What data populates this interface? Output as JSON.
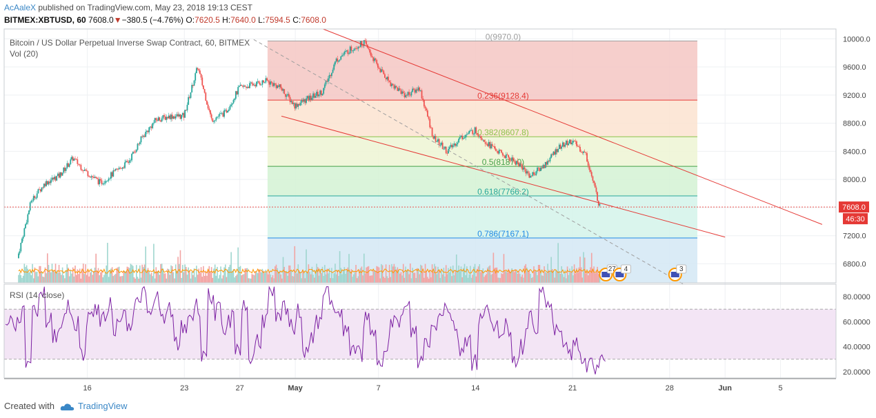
{
  "header": {
    "author": "AcAaleX",
    "published_text": "published on TradingView.com, May 23, 2018 19:13 CEST",
    "symbol": "BITMEX:XBTUSD, 60",
    "last": "7608.0",
    "change": "−380.5 (−4.76%)",
    "o_label": "O:",
    "o_value": "7620.5",
    "h_label": "H:",
    "h_value": "7640.0",
    "l_label": "L:",
    "l_value": "7594.5",
    "c_label": "C:",
    "c_value": "7608.0"
  },
  "pane_labels": {
    "main_title": "Bitcoin / US Dollar Perpetual Inverse Swap Contract, 60, BITMEX",
    "volume": "Vol (20)",
    "rsi": "RSI (14, close)"
  },
  "price_badges": {
    "price": "7608.0",
    "countdown": "46:30"
  },
  "event_markers": [
    {
      "count": "27",
      "date": "May 23"
    },
    {
      "count": "4",
      "date": "May 24"
    },
    {
      "count": "3",
      "date": "May 28"
    }
  ],
  "footer": {
    "created_with": "Created with",
    "brand": "TradingView"
  },
  "colors": {
    "up": "#26a69a",
    "down": "#ef5350",
    "trendline": "#e53935",
    "rsi_line": "#7b1fa2",
    "rsi_band": "#f3e5f5",
    "fib_0": "#f4c7c3",
    "fib_236": "#fbe3d0",
    "fib_382": "#edf5d3",
    "fib_5": "#d4f2d3",
    "fib_618": "#d3f3ea",
    "fib_786": "#d4e8f5",
    "fib_1": "#e6e6e6"
  },
  "chart_data": [
    {
      "type": "candlestick",
      "title": "Bitcoin / US Dollar Perpetual Inverse Swap Contract, 60, BITMEX",
      "x_tick_labels": [
        "16",
        "23",
        "27",
        "May",
        "7",
        "14",
        "21",
        "28",
        "Jun",
        "5"
      ],
      "y_tick_labels": [
        "6800.0",
        "7200.0",
        "7600.0",
        "8000.0",
        "8400.0",
        "8800.0",
        "9200.0",
        "9600.0",
        "10000.0"
      ],
      "ylim": [
        6530,
        10140
      ],
      "price_path": [
        {
          "date": "2018-04-11",
          "close": 6880
        },
        {
          "date": "2018-04-12",
          "close": 7700
        },
        {
          "date": "2018-04-13",
          "close": 7950
        },
        {
          "date": "2018-04-14",
          "close": 8050
        },
        {
          "date": "2018-04-15",
          "close": 8300
        },
        {
          "date": "2018-04-16",
          "close": 8100
        },
        {
          "date": "2018-04-17",
          "close": 7950
        },
        {
          "date": "2018-04-18",
          "close": 8100
        },
        {
          "date": "2018-04-19",
          "close": 8250
        },
        {
          "date": "2018-04-20",
          "close": 8600
        },
        {
          "date": "2018-04-21",
          "close": 8850
        },
        {
          "date": "2018-04-22",
          "close": 8900
        },
        {
          "date": "2018-04-23",
          "close": 8900
        },
        {
          "date": "2018-04-24",
          "close": 9600
        },
        {
          "date": "2018-04-25",
          "close": 8850
        },
        {
          "date": "2018-04-26",
          "close": 8950
        },
        {
          "date": "2018-04-27",
          "close": 9300
        },
        {
          "date": "2018-04-28",
          "close": 9350
        },
        {
          "date": "2018-04-29",
          "close": 9400
        },
        {
          "date": "2018-04-30",
          "close": 9300
        },
        {
          "date": "2018-05-01",
          "close": 9050
        },
        {
          "date": "2018-05-02",
          "close": 9150
        },
        {
          "date": "2018-05-03",
          "close": 9250
        },
        {
          "date": "2018-05-04",
          "close": 9700
        },
        {
          "date": "2018-05-05",
          "close": 9850
        },
        {
          "date": "2018-05-06",
          "close": 9950
        },
        {
          "date": "2018-05-07",
          "close": 9600
        },
        {
          "date": "2018-05-08",
          "close": 9350
        },
        {
          "date": "2018-05-09",
          "close": 9200
        },
        {
          "date": "2018-05-10",
          "close": 9300
        },
        {
          "date": "2018-05-11",
          "close": 8600
        },
        {
          "date": "2018-05-12",
          "close": 8400
        },
        {
          "date": "2018-05-13",
          "close": 8600
        },
        {
          "date": "2018-05-14",
          "close": 8700
        },
        {
          "date": "2018-05-15",
          "close": 8500
        },
        {
          "date": "2018-05-16",
          "close": 8350
        },
        {
          "date": "2018-05-17",
          "close": 8250
        },
        {
          "date": "2018-05-18",
          "close": 8050
        },
        {
          "date": "2018-05-19",
          "close": 8200
        },
        {
          "date": "2018-05-20",
          "close": 8450
        },
        {
          "date": "2018-05-21",
          "close": 8550
        },
        {
          "date": "2018-05-22",
          "close": 8350
        },
        {
          "date": "2018-05-23",
          "close": 7608
        }
      ],
      "last_price": 7608.0,
      "fibonacci": [
        {
          "level": "0",
          "price": 9970.0
        },
        {
          "level": "0.236",
          "price": 9128.4
        },
        {
          "level": "0.382",
          "price": 8607.8
        },
        {
          "level": "0.5",
          "price": 8187.0
        },
        {
          "level": "0.618",
          "price": 7766.2
        },
        {
          "level": "0.786",
          "price": 7167.1
        }
      ],
      "fib_labels": [
        "0(9970.0)",
        "0.236(9128.4)",
        "0.382(8607.8)",
        "0.5(8187.0)",
        "0.618(7766.2)",
        "0.786(7167.1)"
      ],
      "fib_range": {
        "start": "2018-04-29",
        "end": "2018-05-30"
      },
      "trendlines": [
        {
          "from": {
            "date": "2018-05-03",
            "price": 10140
          },
          "to": {
            "date": "2018-06-08",
            "price": 7360
          }
        },
        {
          "from": {
            "date": "2018-04-30",
            "price": 8900
          },
          "to": {
            "date": "2018-06-01",
            "price": 7180
          }
        },
        {
          "from": {
            "date": "2018-04-28",
            "price": 9990
          },
          "to": {
            "date": "2018-05-29",
            "price": 6510
          },
          "style": "dashed"
        }
      ]
    },
    {
      "type": "bar",
      "title": "Vol (20)",
      "note": "volume bars coloured by candle direction with a moving-average line"
    },
    {
      "type": "line",
      "title": "RSI (14, close)",
      "y_tick_labels": [
        "20.0000",
        "40.0000",
        "60.0000",
        "80.0000"
      ],
      "ylim": [
        15,
        90
      ],
      "band": [
        30,
        70
      ],
      "series": [
        {
          "name": "",
          "values": [
            62,
            58,
            65,
            30,
            70,
            84,
            60,
            50,
            62,
            70,
            58,
            35,
            64,
            70,
            60,
            72,
            56,
            66,
            60,
            74,
            82,
            65,
            80,
            60,
            70,
            40,
            55,
            65,
            72,
            35,
            80,
            68,
            50,
            62,
            40,
            72,
            30,
            46,
            62,
            82,
            60,
            70,
            55,
            68,
            38,
            48,
            58,
            88,
            74,
            65,
            50,
            40,
            35,
            60,
            48,
            30,
            44,
            58,
            62,
            70,
            52,
            28,
            45,
            55,
            70,
            72,
            58,
            38,
            48,
            28,
            62,
            68,
            60,
            44,
            55,
            30,
            40,
            62,
            58,
            80,
            72,
            55,
            45,
            36,
            44,
            30,
            24,
            20,
            36
          ]
        }
      ]
    }
  ]
}
